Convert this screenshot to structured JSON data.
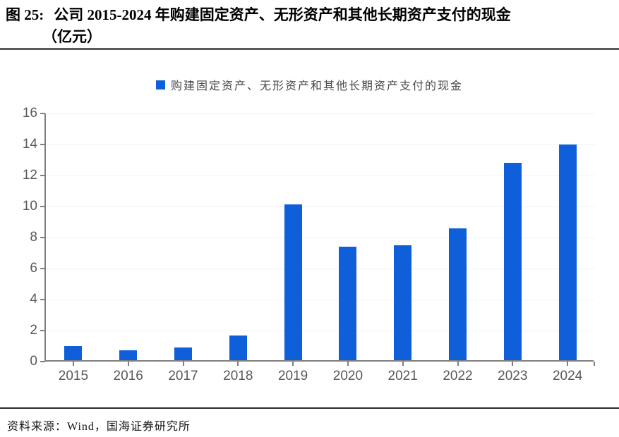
{
  "title": {
    "figure_label": "图 25:",
    "text": "公司 2015-2024 年购建固定资产、无形资产和其他长期资产支付的现金",
    "unit_line": "（亿元）"
  },
  "legend": {
    "label": "购建固定资产、无形资产和其他长期资产支付的现金"
  },
  "source": {
    "text": "资料来源：Wind，国海证券研究所"
  },
  "colors": {
    "bar": "#0E5FD9",
    "axis": "#7f7f7f",
    "tick_label": "#595959",
    "gridline": "#f2f2f2",
    "title_rule": "#595959",
    "bottom_rule": "#2b2b2b"
  },
  "chart_data": {
    "type": "bar",
    "title": "公司 2015-2024 年购建固定资产、无形资产和其他长期资产支付的现金（亿元）",
    "categories": [
      "2015",
      "2016",
      "2017",
      "2018",
      "2019",
      "2020",
      "2021",
      "2022",
      "2023",
      "2024"
    ],
    "values": [
      0.9,
      0.65,
      0.8,
      1.6,
      10.05,
      7.3,
      7.4,
      8.5,
      12.75,
      13.9
    ],
    "series_name": "购建固定资产、无形资产和其他长期资产支付的现金",
    "xlabel": "",
    "ylabel": "",
    "ylim": [
      0,
      16
    ],
    "ytick_step": 2,
    "grid": "faint-horizontal-lines",
    "legend_position": "top-center",
    "bar_color": "#0E5FD9"
  }
}
